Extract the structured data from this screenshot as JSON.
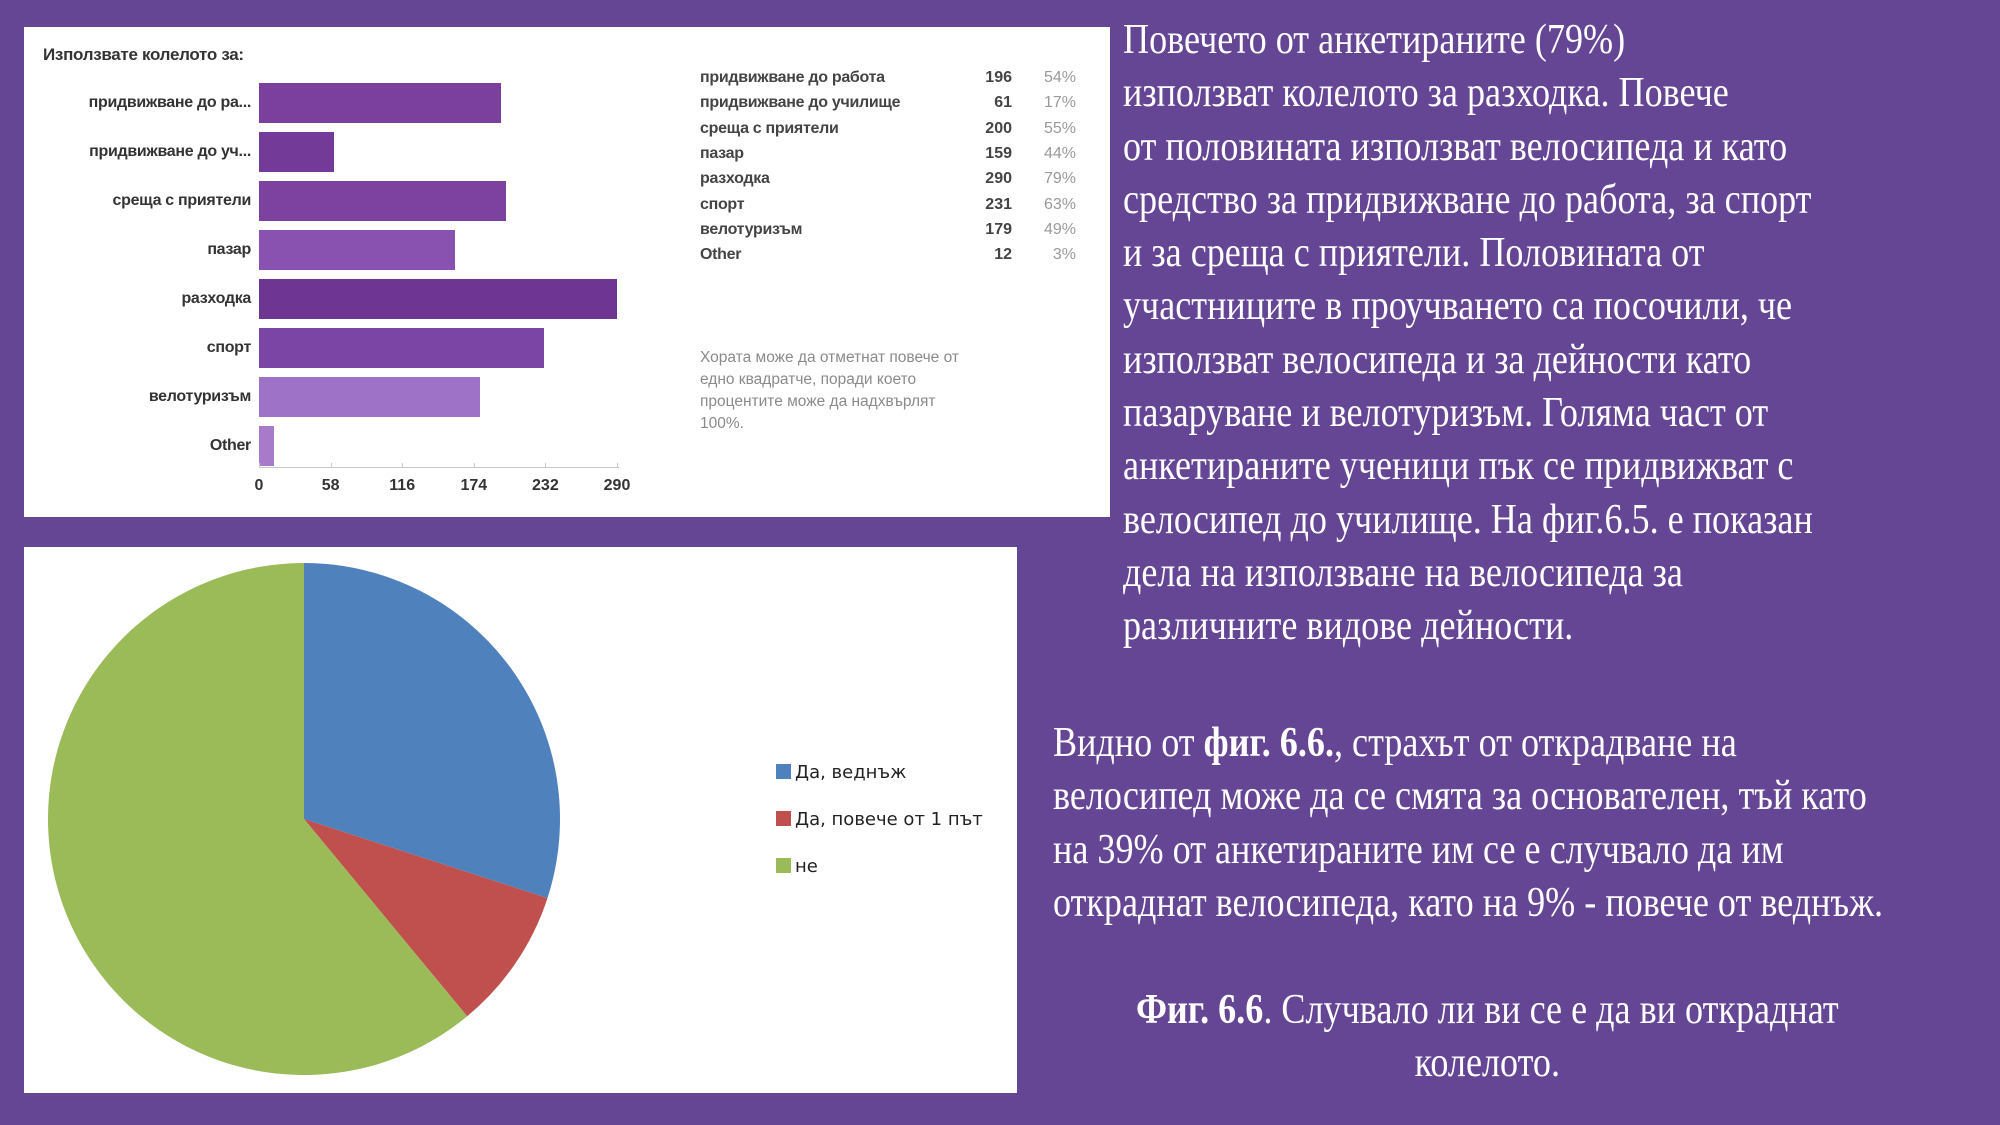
{
  "background_color": "#654694",
  "chart_data": [
    {
      "type": "bar",
      "orientation": "horizontal",
      "title": "Използвате колелото за:",
      "categories": [
        "придвижване до работа",
        "придвижване до училище",
        "среща с приятели",
        "пазар",
        "разходка",
        "спорт",
        "велотуризъм",
        "Other"
      ],
      "axis_labels": [
        "придвижване до ра...",
        "придвижване до уч...",
        "среща с приятели",
        "пазар",
        "разходка",
        "спорт",
        "велотуризъм",
        "Other"
      ],
      "values": [
        196,
        61,
        200,
        159,
        290,
        231,
        179,
        12
      ],
      "percentages": [
        "54%",
        "17%",
        "55%",
        "44%",
        "79%",
        "63%",
        "49%",
        "3%"
      ],
      "bar_colors": [
        "#7b3f9d",
        "#743a98",
        "#7d41a0",
        "#8952b0",
        "#6f3592",
        "#7a45a4",
        "#9e72c6",
        "#a77bca"
      ],
      "xticks": [
        0,
        58,
        116,
        174,
        232,
        290
      ],
      "xlim": [
        0,
        290
      ],
      "grid": false,
      "note": "Хората може да отметнат повече от едно квадратче, поради което процентите може да надхвърлят 100%.",
      "note_lines": [
        "Хората може да отметнат повече от",
        "едно квадратче, поради което",
        "процентите може да надхвърлят",
        "100%."
      ]
    },
    {
      "type": "pie",
      "title": "",
      "categories": [
        "Да, веднъж",
        "Да, повече от 1 път",
        "не"
      ],
      "values": [
        30,
        9,
        61
      ],
      "colors": [
        "#4f81bd",
        "#c0504d",
        "#9bbb59"
      ],
      "start_angle": "12 o'clock",
      "direction": "clockwise",
      "legend_position": "right"
    }
  ],
  "paragraph1": {
    "lines": [
      "Повечето от анкетираните (79%)",
      "използват колелото за разходка. Повече",
      "от половината използват велосипеда и като",
      "средство за придвижване до работа, за спорт",
      "и за среща с приятели. Половината от",
      "участниците в проучването са посочили, че",
      "използват велосипеда и за дейности като",
      "пазаруване и велотуризъм. Голяма част от",
      "анкетираните ученици пък се придвижват с",
      "велосипед до училище. На фиг.6.5. е показан",
      "дела на използване на велосипеда за",
      "различните видове дейности."
    ]
  },
  "paragraph2": {
    "line1_prefix": "Видно от ",
    "line1_bold": "фиг. 6.6.",
    "line1_suffix": ", страхът от открадване на",
    "lines_rest": [
      "велосипед може да се смята за основателен, тъй като",
      "на 39% от анкетираните им се е случвало да им",
      "откраднат велосипеда, като на 9% - повече от веднъж."
    ]
  },
  "caption": {
    "bold": "Фиг. 6.6",
    "line1_rest": ". Случвало ли ви се е да ви откраднат",
    "line2": "колелото."
  }
}
